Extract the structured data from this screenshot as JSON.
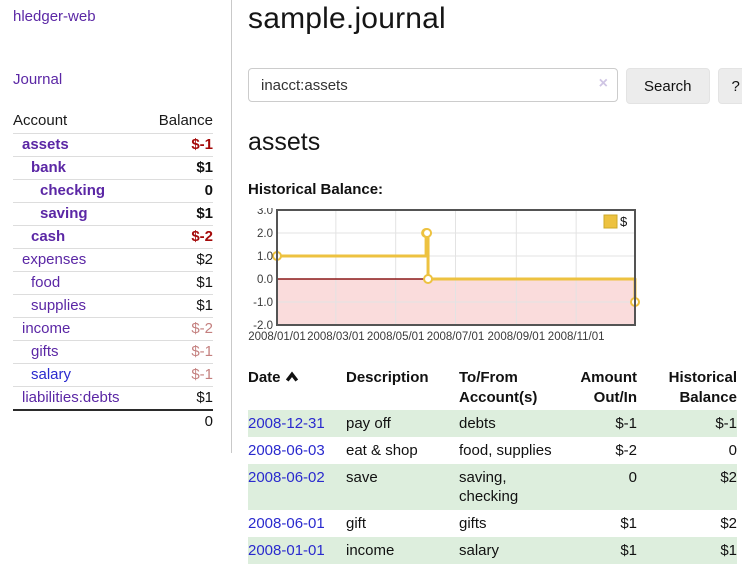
{
  "app": {
    "title": "hledger-web",
    "nav_journal": "Journal"
  },
  "sidebar": {
    "accounts_header": {
      "account": "Account",
      "balance": "Balance"
    },
    "accounts": [
      {
        "name": "assets",
        "indent": 1,
        "bold": true,
        "link_color": "purple",
        "balance": "$-1",
        "balance_style": "neg-strong"
      },
      {
        "name": "bank",
        "indent": 2,
        "bold": true,
        "link_color": "purple",
        "balance": "$1",
        "balance_style": "pos-strong"
      },
      {
        "name": "checking",
        "indent": 3,
        "bold": true,
        "link_color": "purple",
        "balance": "0",
        "balance_style": "pos-strong"
      },
      {
        "name": "saving",
        "indent": 3,
        "bold": true,
        "link_color": "purple",
        "balance": "$1",
        "balance_style": "pos-strong"
      },
      {
        "name": "cash",
        "indent": 2,
        "bold": true,
        "link_color": "purple",
        "balance": "$-2",
        "balance_style": "neg-strong"
      },
      {
        "name": "expenses",
        "indent": 1,
        "bold": false,
        "link_color": "purple",
        "balance": "$2",
        "balance_style": "pos"
      },
      {
        "name": "food",
        "indent": 2,
        "bold": false,
        "link_color": "purple",
        "balance": "$1",
        "balance_style": "pos"
      },
      {
        "name": "supplies",
        "indent": 2,
        "bold": false,
        "link_color": "purple",
        "balance": "$1",
        "balance_style": "pos"
      },
      {
        "name": "income",
        "indent": 1,
        "bold": false,
        "link_color": "purple",
        "balance": "$-2",
        "balance_style": "neg-muted"
      },
      {
        "name": "gifts",
        "indent": 2,
        "bold": false,
        "link_color": "purple",
        "balance": "$-1",
        "balance_style": "neg-muted"
      },
      {
        "name": "salary",
        "indent": 2,
        "bold": false,
        "link_color": "blue",
        "balance": "$-1",
        "balance_style": "neg-muted"
      },
      {
        "name": "liabilities:debts",
        "indent": 1,
        "bold": false,
        "link_color": "purple",
        "balance": "$1",
        "balance_style": "pos"
      }
    ],
    "total": "0"
  },
  "header": {
    "title": "sample.journal"
  },
  "search": {
    "value": "inacct:assets",
    "clear_icon": "×",
    "button": "Search",
    "help_button": "?"
  },
  "account_page": {
    "title": "assets",
    "chart_label": "Historical Balance:"
  },
  "chart_data": {
    "type": "line",
    "title": "Historical Balance:",
    "series": [
      {
        "name": "$",
        "color": "#edc240",
        "step": true,
        "points": [
          [
            "2008-01-01",
            1.0
          ],
          [
            "2008-06-01",
            2.0
          ],
          [
            "2008-06-02",
            2.0
          ],
          [
            "2008-06-03",
            0.0
          ],
          [
            "2008-12-31",
            -1.0
          ]
        ]
      }
    ],
    "x_range": [
      "2008-01-01",
      "2008-12-31"
    ],
    "x_ticks": [
      "2008/01/01",
      "2008/03/01",
      "2008/05/01",
      "2008/07/01",
      "2008/09/01",
      "2008/11/01"
    ],
    "y_ticks": [
      "3.0",
      "2.0",
      "1.0",
      "0.0",
      "-1.0",
      "-2.0"
    ],
    "ylim": [
      -2.0,
      3.0
    ],
    "grid": true,
    "legend_position": "top-right",
    "negative_region_color": "#fadcdc",
    "zero_line_color": "#8b1a1a",
    "border_color": "#545454",
    "gridline_color": "#e3e3e3"
  },
  "register": {
    "columns": [
      {
        "label": "Date",
        "sort": "asc"
      },
      {
        "label": "Description"
      },
      {
        "label": "To/From Account(s)"
      },
      {
        "label": "Amount Out/In",
        "align": "right"
      },
      {
        "label": "Historical Balance",
        "align": "right"
      }
    ],
    "rows": [
      {
        "date": "2008-12-31",
        "description": "pay off",
        "accounts": "debts",
        "amount": "$-1",
        "amount_neg": true,
        "balance": "$-1",
        "balance_neg": true
      },
      {
        "date": "2008-06-03",
        "description": "eat & shop",
        "accounts": "food, supplies",
        "amount": "$-2",
        "amount_neg": true,
        "balance": "0",
        "balance_neg": false
      },
      {
        "date": "2008-06-02",
        "description": "save",
        "accounts": "saving, checking",
        "amount": "0",
        "amount_neg": false,
        "balance": "$2",
        "balance_neg": false
      },
      {
        "date": "2008-06-01",
        "description": "gift",
        "accounts": "gifts",
        "amount": "$1",
        "amount_neg": false,
        "balance": "$2",
        "balance_neg": false
      },
      {
        "date": "2008-01-01",
        "description": "income",
        "accounts": "salary",
        "amount": "$1",
        "amount_neg": false,
        "balance": "$1",
        "balance_neg": false
      }
    ]
  }
}
